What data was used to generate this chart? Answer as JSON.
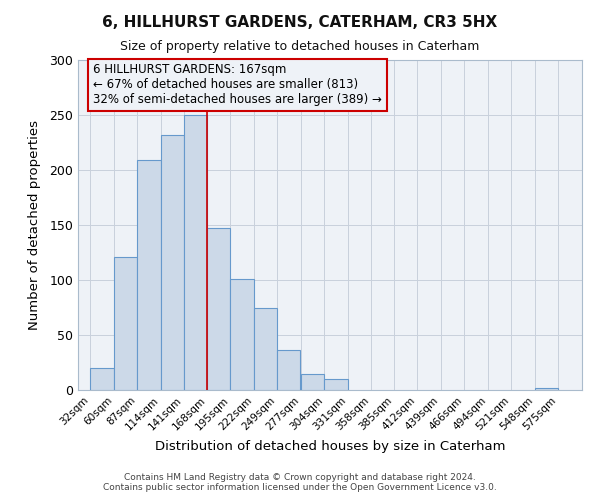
{
  "title": "6, HILLHURST GARDENS, CATERHAM, CR3 5HX",
  "subtitle": "Size of property relative to detached houses in Caterham",
  "xlabel": "Distribution of detached houses by size in Caterham",
  "ylabel": "Number of detached properties",
  "bar_left_edges": [
    32,
    60,
    87,
    114,
    141,
    168,
    195,
    222,
    249,
    277,
    304,
    331,
    358,
    385,
    412,
    439,
    466,
    494,
    521,
    548
  ],
  "bar_widths": [
    28,
    27,
    27,
    27,
    27,
    27,
    27,
    27,
    27,
    27,
    27,
    27,
    27,
    27,
    27,
    27,
    27,
    27,
    27,
    27
  ],
  "bar_heights": [
    20,
    121,
    209,
    232,
    250,
    147,
    101,
    75,
    36,
    15,
    10,
    0,
    0,
    0,
    0,
    0,
    0,
    0,
    0,
    2
  ],
  "bar_color": "#ccd9e8",
  "bar_edge_color": "#6699cc",
  "tick_labels": [
    "32sqm",
    "60sqm",
    "87sqm",
    "114sqm",
    "141sqm",
    "168sqm",
    "195sqm",
    "222sqm",
    "249sqm",
    "277sqm",
    "304sqm",
    "331sqm",
    "358sqm",
    "385sqm",
    "412sqm",
    "439sqm",
    "466sqm",
    "494sqm",
    "521sqm",
    "548sqm",
    "575sqm"
  ],
  "tick_positions": [
    32,
    60,
    87,
    114,
    141,
    168,
    195,
    222,
    249,
    277,
    304,
    331,
    358,
    385,
    412,
    439,
    466,
    494,
    521,
    548,
    575
  ],
  "ylim": [
    0,
    300
  ],
  "xlim": [
    18,
    603
  ],
  "yticks": [
    0,
    50,
    100,
    150,
    200,
    250,
    300
  ],
  "property_line_x": 168,
  "property_line_color": "#cc0000",
  "annotation_title": "6 HILLHURST GARDENS: 167sqm",
  "annotation_line1": "← 67% of detached houses are smaller (813)",
  "annotation_line2": "32% of semi-detached houses are larger (389) →",
  "annotation_box_color": "#cc0000",
  "bg_color": "#ffffff",
  "plot_bg_color": "#eef2f7",
  "grid_color": "#c8d0dc",
  "footer1": "Contains HM Land Registry data © Crown copyright and database right 2024.",
  "footer2": "Contains public sector information licensed under the Open Government Licence v3.0."
}
